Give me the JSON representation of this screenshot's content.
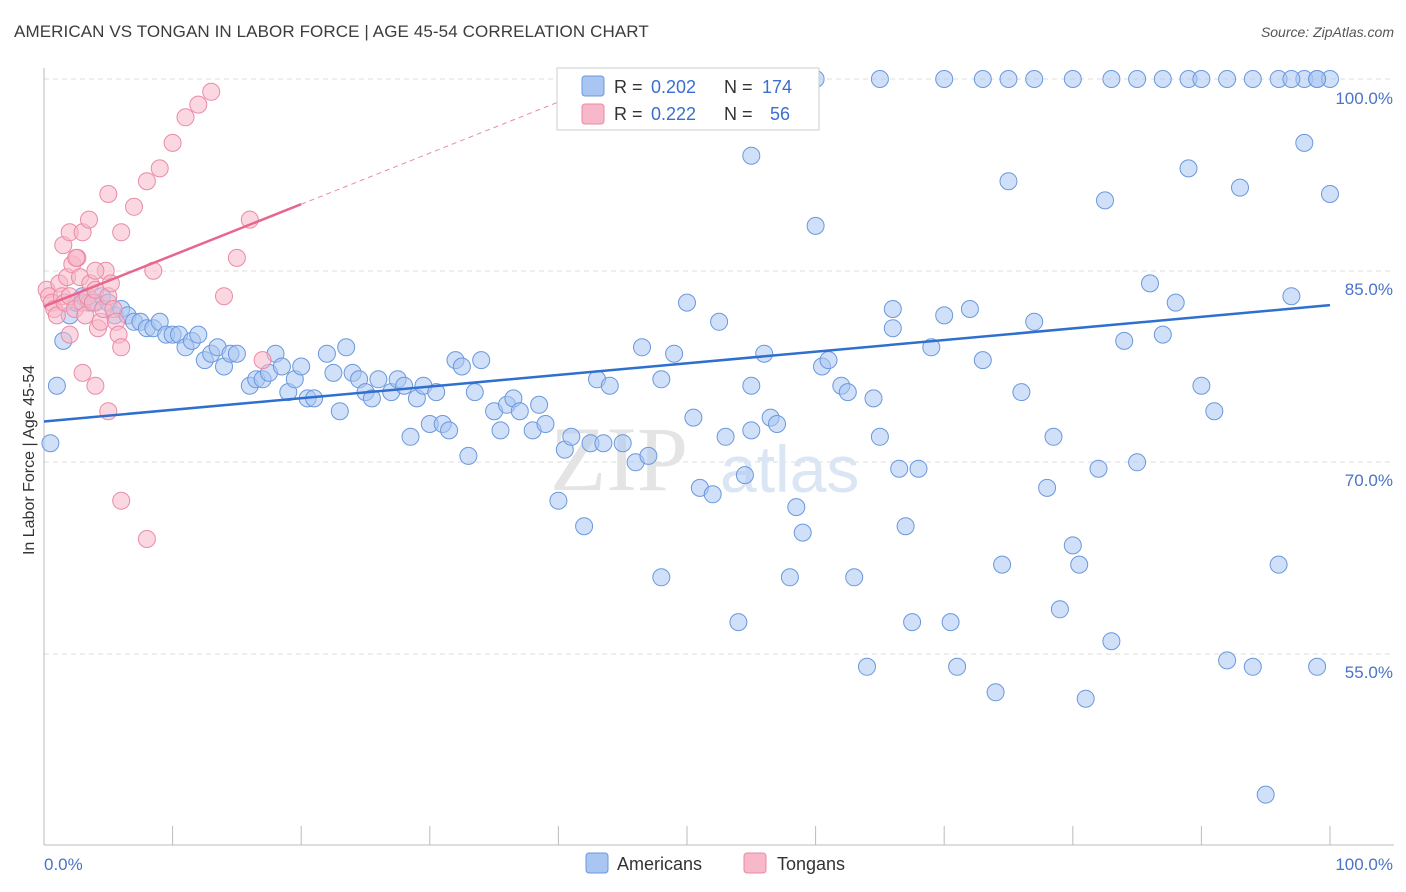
{
  "header": {
    "title": "AMERICAN VS TONGAN IN LABOR FORCE | AGE 45-54 CORRELATION CHART",
    "source": "Source: ZipAtlas.com"
  },
  "watermark": {
    "zip": "ZIP",
    "atlas": "atlas"
  },
  "colors": {
    "american_fill": "#a9c6f2",
    "american_stroke": "#6a98dd",
    "american_line": "#2f6fce",
    "tongan_fill": "#f7b8c9",
    "tongan_stroke": "#ea8aa6",
    "tongan_line": "#e8668e",
    "grid": "#dddddd",
    "axis_label": "#4a73c9"
  },
  "legend": {
    "rows": [
      {
        "r_label": "R =",
        "r_value": "0.202",
        "n_label": "N =",
        "n_value": "174"
      },
      {
        "r_label": "R =",
        "r_value": "0.222",
        "n_label": "N =",
        "n_value": "56"
      }
    ]
  },
  "bottom_legend": {
    "americans": "Americans",
    "tongans": "Tongans"
  },
  "chart_data": {
    "type": "scatter",
    "title": "AMERICAN VS TONGAN IN LABOR FORCE | AGE 45-54 CORRELATION CHART",
    "xlabel": "",
    "ylabel": "In Labor Force | Age 45-54",
    "xlim": [
      0,
      100
    ],
    "ylim": [
      40,
      102
    ],
    "x_tick_labels": [
      "0.0%",
      "100.0%"
    ],
    "y_tick_labels": [
      "100.0%",
      "85.0%",
      "70.0%",
      "55.0%"
    ],
    "y_ticks": [
      100,
      85,
      70,
      55
    ],
    "legend_position": "top-center",
    "series": [
      {
        "name": "Americans",
        "R": 0.202,
        "N": 174,
        "trend": {
          "x": [
            0,
            100
          ],
          "y": [
            73.2,
            82.3
          ]
        },
        "points": [
          [
            0.5,
            71.5
          ],
          [
            1,
            76
          ],
          [
            1.5,
            79.5
          ],
          [
            2,
            81.5
          ],
          [
            2.5,
            82.5
          ],
          [
            3,
            83
          ],
          [
            3.5,
            82.5
          ],
          [
            4,
            82.5
          ],
          [
            4.5,
            83
          ],
          [
            5,
            82.5
          ],
          [
            5.5,
            81.5
          ],
          [
            6,
            82
          ],
          [
            6.5,
            81.5
          ],
          [
            7,
            81
          ],
          [
            7.5,
            81
          ],
          [
            8,
            80.5
          ],
          [
            8.5,
            80.5
          ],
          [
            9,
            81
          ],
          [
            9.5,
            80
          ],
          [
            10,
            80
          ],
          [
            10.5,
            80
          ],
          [
            11,
            79
          ],
          [
            11.5,
            79.5
          ],
          [
            12,
            80
          ],
          [
            12.5,
            78
          ],
          [
            13,
            78.5
          ],
          [
            13.5,
            79
          ],
          [
            14,
            77.5
          ],
          [
            14.5,
            78.5
          ],
          [
            15,
            78.5
          ],
          [
            16,
            76
          ],
          [
            16.5,
            76.5
          ],
          [
            17,
            76.5
          ],
          [
            17.5,
            77
          ],
          [
            18,
            78.5
          ],
          [
            18.5,
            77.5
          ],
          [
            19,
            75.5
          ],
          [
            19.5,
            76.5
          ],
          [
            20,
            77.5
          ],
          [
            20.5,
            75
          ],
          [
            21,
            75
          ],
          [
            22,
            78.5
          ],
          [
            22.5,
            77
          ],
          [
            23,
            74
          ],
          [
            23.5,
            79
          ],
          [
            24,
            77
          ],
          [
            24.5,
            76.5
          ],
          [
            25,
            75.5
          ],
          [
            25.5,
            75
          ],
          [
            26,
            76.5
          ],
          [
            27,
            75.5
          ],
          [
            27.5,
            76.5
          ],
          [
            28,
            76
          ],
          [
            28.5,
            72
          ],
          [
            29,
            75
          ],
          [
            29.5,
            76
          ],
          [
            30,
            73
          ],
          [
            30.5,
            75.5
          ],
          [
            31,
            73
          ],
          [
            31.5,
            72.5
          ],
          [
            32,
            78
          ],
          [
            32.5,
            77.5
          ],
          [
            33,
            70.5
          ],
          [
            33.5,
            75.5
          ],
          [
            34,
            78
          ],
          [
            35,
            74
          ],
          [
            35.5,
            72.5
          ],
          [
            36,
            74.5
          ],
          [
            36.5,
            75
          ],
          [
            37,
            74
          ],
          [
            38,
            72.5
          ],
          [
            38.5,
            74.5
          ],
          [
            39,
            73
          ],
          [
            40,
            67
          ],
          [
            40.5,
            71
          ],
          [
            41,
            72
          ],
          [
            42,
            65
          ],
          [
            42.5,
            71.5
          ],
          [
            43,
            76.5
          ],
          [
            43.5,
            71.5
          ],
          [
            44,
            76
          ],
          [
            45,
            71.5
          ],
          [
            46,
            70
          ],
          [
            46.5,
            79
          ],
          [
            47,
            70.5
          ],
          [
            48,
            61
          ],
          [
            48,
            76.5
          ],
          [
            49,
            78.5
          ],
          [
            50,
            82.5
          ],
          [
            50.5,
            73.5
          ],
          [
            51,
            68
          ],
          [
            52,
            67.5
          ],
          [
            52.5,
            81
          ],
          [
            53,
            72
          ],
          [
            54,
            57.5
          ],
          [
            54.5,
            69
          ],
          [
            55,
            72.5
          ],
          [
            56,
            78.5
          ],
          [
            56.5,
            73.5
          ],
          [
            57,
            73
          ],
          [
            58,
            61
          ],
          [
            58.5,
            66.5
          ],
          [
            59,
            64.5
          ],
          [
            60,
            88.5
          ],
          [
            60.5,
            77.5
          ],
          [
            61,
            78
          ],
          [
            62,
            76
          ],
          [
            62.5,
            75.5
          ],
          [
            63,
            61
          ],
          [
            64,
            54
          ],
          [
            64.5,
            75
          ],
          [
            65,
            72
          ],
          [
            66,
            80.5
          ],
          [
            66.5,
            69.5
          ],
          [
            67,
            65
          ],
          [
            67.5,
            57.5
          ],
          [
            68,
            69.5
          ],
          [
            69,
            79
          ],
          [
            70,
            81.5
          ],
          [
            70.5,
            57.5
          ],
          [
            71,
            54
          ],
          [
            72,
            82
          ],
          [
            73,
            78
          ],
          [
            74,
            52
          ],
          [
            74.5,
            62
          ],
          [
            75,
            92
          ],
          [
            76,
            75.5
          ],
          [
            77,
            81
          ],
          [
            78,
            68
          ],
          [
            78.5,
            72
          ],
          [
            79,
            58.5
          ],
          [
            80,
            63.5
          ],
          [
            80.5,
            62
          ],
          [
            81,
            51.5
          ],
          [
            82,
            69.5
          ],
          [
            82.5,
            90.5
          ],
          [
            83,
            56
          ],
          [
            84,
            79.5
          ],
          [
            85,
            70
          ],
          [
            86,
            84
          ],
          [
            87,
            80
          ],
          [
            88,
            82.5
          ],
          [
            89,
            93
          ],
          [
            90,
            76
          ],
          [
            91,
            74
          ],
          [
            92,
            54.5
          ],
          [
            93,
            91.5
          ],
          [
            94,
            54
          ],
          [
            95,
            44
          ],
          [
            96,
            62
          ],
          [
            97,
            83
          ],
          [
            99,
            54
          ],
          [
            98,
            100
          ],
          [
            99,
            100
          ],
          [
            100,
            100
          ],
          [
            55,
            94
          ],
          [
            60,
            100
          ],
          [
            65,
            100
          ],
          [
            70,
            100
          ],
          [
            73,
            100
          ],
          [
            75,
            100
          ],
          [
            77,
            100
          ],
          [
            80,
            100
          ],
          [
            83,
            100
          ],
          [
            85,
            100
          ],
          [
            87,
            100
          ],
          [
            89,
            100
          ],
          [
            90,
            100
          ],
          [
            92,
            100
          ],
          [
            94,
            100
          ],
          [
            96,
            100
          ],
          [
            97,
            100
          ],
          [
            98,
            95
          ],
          [
            100,
            91
          ],
          [
            99,
            100
          ],
          [
            55,
            76
          ],
          [
            66,
            82
          ]
        ]
      },
      {
        "name": "Tongans",
        "R": 0.222,
        "N": 56,
        "trend": {
          "x": [
            0,
            20
          ],
          "y": [
            82.2,
            90.2
          ]
        },
        "trend_dashed": {
          "x": [
            20,
            40
          ],
          "y": [
            90.2,
            98.2
          ]
        },
        "points": [
          [
            0.2,
            83.5
          ],
          [
            0.4,
            83
          ],
          [
            0.6,
            82.5
          ],
          [
            0.8,
            82
          ],
          [
            1,
            81.5
          ],
          [
            1.2,
            84
          ],
          [
            1.4,
            83
          ],
          [
            1.6,
            82.5
          ],
          [
            1.8,
            84.5
          ],
          [
            2,
            83
          ],
          [
            2.2,
            85.5
          ],
          [
            2.4,
            82
          ],
          [
            2.6,
            86
          ],
          [
            2.8,
            84.5
          ],
          [
            3,
            82.5
          ],
          [
            3.2,
            81.5
          ],
          [
            3.4,
            83
          ],
          [
            3.6,
            84
          ],
          [
            3.8,
            82.5
          ],
          [
            4,
            83.5
          ],
          [
            4.2,
            80.5
          ],
          [
            4.4,
            81
          ],
          [
            4.6,
            82
          ],
          [
            4.8,
            85
          ],
          [
            5,
            83
          ],
          [
            5.2,
            84
          ],
          [
            5.4,
            82
          ],
          [
            5.6,
            81
          ],
          [
            5.8,
            80
          ],
          [
            6,
            79
          ],
          [
            1.5,
            87
          ],
          [
            2,
            88
          ],
          [
            2.5,
            86
          ],
          [
            3,
            88
          ],
          [
            3.5,
            89
          ],
          [
            4,
            85
          ],
          [
            5,
            91
          ],
          [
            6,
            88
          ],
          [
            7,
            90
          ],
          [
            8,
            92
          ],
          [
            8.5,
            85
          ],
          [
            9,
            93
          ],
          [
            10,
            95
          ],
          [
            11,
            97
          ],
          [
            12,
            98
          ],
          [
            13,
            99
          ],
          [
            14,
            83
          ],
          [
            15,
            86
          ],
          [
            16,
            89
          ],
          [
            17,
            78
          ],
          [
            2,
            80
          ],
          [
            3,
            77
          ],
          [
            4,
            76
          ],
          [
            5,
            74
          ],
          [
            6,
            67
          ],
          [
            8,
            64
          ]
        ]
      }
    ]
  }
}
